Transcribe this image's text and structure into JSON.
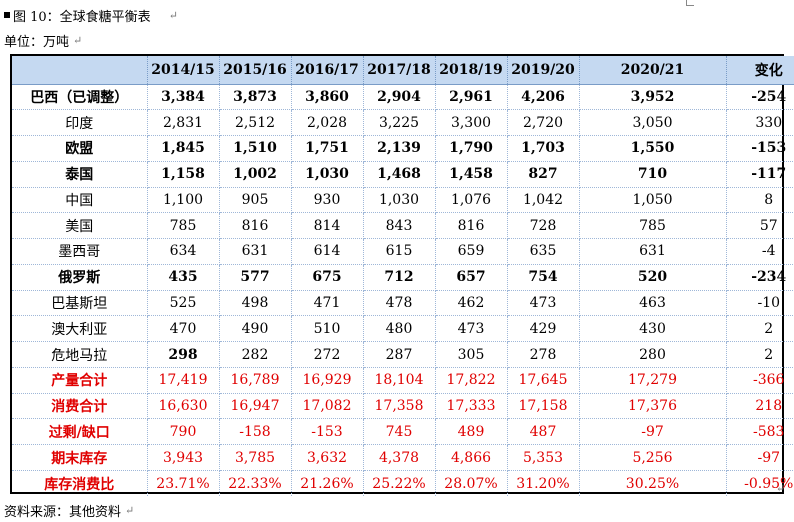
{
  "title": "图 10：全球食糖平衡表",
  "return_mark": "↵",
  "unit": "单位：万吨",
  "source": "资料来源：其他资料",
  "table": {
    "headers": [
      "",
      "2014/15",
      "2015/16",
      "2016/17",
      "2017/18",
      "2018/19",
      "2019/20",
      "2020/21",
      "变化"
    ],
    "rows": [
      {
        "name": "巴西（已调整）",
        "values": [
          "3,384",
          "3,873",
          "3,860",
          "2,904",
          "2,961",
          "4,206",
          "3,952",
          "-254"
        ]
      },
      {
        "name": "印度",
        "values": [
          "2,831",
          "2,512",
          "2,028",
          "3,225",
          "3,300",
          "2,720",
          "3,050",
          "330"
        ]
      },
      {
        "name": "欧盟",
        "values": [
          "1,845",
          "1,510",
          "1,751",
          "2,139",
          "1,790",
          "1,703",
          "1,550",
          "-153"
        ]
      },
      {
        "name": "泰国",
        "values": [
          "1,158",
          "1,002",
          "1,030",
          "1,468",
          "1,458",
          "827",
          "710",
          "-117"
        ]
      },
      {
        "name": "中国",
        "values": [
          "1,100",
          "905",
          "930",
          "1,030",
          "1,076",
          "1,042",
          "1,050",
          "8"
        ]
      },
      {
        "name": "美国",
        "values": [
          "785",
          "816",
          "814",
          "843",
          "816",
          "728",
          "785",
          "57"
        ]
      },
      {
        "name": "墨西哥",
        "values": [
          "634",
          "631",
          "614",
          "615",
          "659",
          "635",
          "631",
          "-4"
        ]
      },
      {
        "name": "俄罗斯",
        "values": [
          "435",
          "577",
          "675",
          "712",
          "657",
          "754",
          "520",
          "-234"
        ]
      },
      {
        "name": "巴基斯坦",
        "values": [
          "525",
          "498",
          "471",
          "478",
          "462",
          "473",
          "463",
          "-10"
        ]
      },
      {
        "name": "澳大利亚",
        "values": [
          "470",
          "490",
          "510",
          "480",
          "473",
          "429",
          "430",
          "2"
        ]
      },
      {
        "name": "危地马拉",
        "values": [
          "298",
          "282",
          "272",
          "287",
          "305",
          "278",
          "280",
          "2"
        ]
      },
      {
        "name": "产量合计",
        "values": [
          "17,419",
          "16,789",
          "16,929",
          "18,104",
          "17,822",
          "17,645",
          "17,279",
          "-366"
        ]
      },
      {
        "name": "消费合计",
        "values": [
          "16,630",
          "16,947",
          "17,082",
          "17,358",
          "17,333",
          "17,158",
          "17,376",
          "218"
        ]
      },
      {
        "name": "过剩/缺口",
        "values": [
          "790",
          "-158",
          "-153",
          "745",
          "489",
          "487",
          "-97",
          "-583"
        ]
      },
      {
        "name": "期末库存",
        "values": [
          "3,943",
          "3,785",
          "3,632",
          "4,378",
          "4,866",
          "5,353",
          "5,256",
          "-97"
        ]
      },
      {
        "name": "库存消费比",
        "values": [
          "23.71%",
          "22.33%",
          "21.26%",
          "25.22%",
          "28.07%",
          "31.20%",
          "30.25%",
          "-0.95%"
        ]
      }
    ]
  },
  "colors": {
    "header_bg": "#c5d9f1",
    "total_text": "#e00000"
  }
}
